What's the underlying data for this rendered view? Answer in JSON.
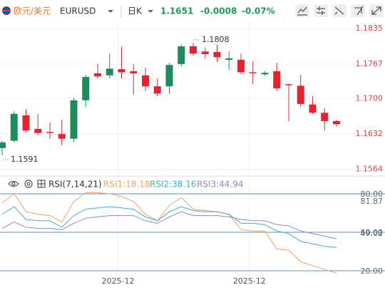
{
  "header": {
    "pair_name": "欧元/美元",
    "symbol": "EURUSD",
    "period": "日K",
    "price": "1.1651",
    "change": "-0.0008",
    "change_pct": "-0.07%",
    "change_color": "#1a9a5a"
  },
  "chart_data": [
    {
      "type": "candlestick",
      "categories": [
        null,
        null,
        null,
        null,
        null,
        null,
        null,
        null,
        null,
        null,
        "2025-12",
        null,
        null,
        null,
        null,
        null,
        null,
        null,
        null,
        null,
        null,
        "2025-12",
        null,
        null,
        null,
        null,
        null,
        null,
        null
      ],
      "open": [
        1.1605,
        1.1619,
        1.1668,
        1.1642,
        1.1636,
        1.1632,
        1.1623,
        1.1697,
        1.1749,
        1.1745,
        1.1757,
        1.1753,
        1.1745,
        1.1724,
        1.1724,
        1.1767,
        1.1801,
        1.1791,
        1.179,
        1.1775,
        1.1775,
        1.1751,
        1.1747,
        1.1753,
        1.1728,
        1.1725,
        1.1689,
        1.1673,
        1.1657
      ],
      "high": [
        1.1619,
        1.1676,
        1.168,
        1.1671,
        1.1654,
        1.166,
        1.1701,
        1.1746,
        1.1767,
        1.1787,
        1.18,
        1.1767,
        1.176,
        1.1739,
        1.1769,
        1.1805,
        1.1808,
        1.1799,
        1.1804,
        1.1791,
        1.1787,
        1.1773,
        1.1753,
        1.1769,
        1.1729,
        1.1746,
        1.1705,
        1.1682,
        1.166
      ],
      "low": [
        1.1591,
        1.1616,
        1.1635,
        1.163,
        1.1623,
        1.161,
        1.1616,
        1.1684,
        1.1739,
        1.1739,
        1.1739,
        1.1708,
        1.1715,
        1.1705,
        1.1709,
        1.1762,
        1.1783,
        1.1778,
        1.1771,
        1.1756,
        1.1747,
        1.1728,
        1.1745,
        1.1715,
        1.1657,
        1.1684,
        1.1671,
        1.1639,
        1.1646
      ],
      "close": [
        1.1616,
        1.1671,
        1.1639,
        1.1634,
        1.1634,
        1.1623,
        1.1697,
        1.1742,
        1.1743,
        1.1758,
        1.1751,
        1.1749,
        1.1724,
        1.171,
        1.1765,
        1.1801,
        1.1787,
        1.1786,
        1.178,
        1.1778,
        1.1751,
        1.1749,
        1.175,
        1.172,
        1.1726,
        1.169,
        1.1673,
        1.1657,
        1.1651
      ],
      "up_color": "#1e8c5a",
      "down_color": "#e5232e",
      "axis_label_color": "#e0404a",
      "ylim": [
        1.1554,
        1.186
      ],
      "yticks": [
        1.1835,
        1.1767,
        {
          "value": 1.17,
          "label": "1.1700"
        },
        1.1632,
        1.1564
      ],
      "max_label": {
        "value": 1.1808,
        "label": "1.1808"
      },
      "min_label": {
        "value": 1.1591,
        "label": "1.1591"
      },
      "grid": true
    },
    {
      "type": "line",
      "title": "RSI(7,14,21)",
      "series": [
        {
          "name": "RSI1:18.18",
          "color": "#f2a15a",
          "values": [
            72.8,
            80,
            66,
            64,
            63,
            58,
            74,
            81,
            81,
            80,
            78,
            74,
            64,
            59,
            71,
            77,
            68,
            67,
            66,
            64,
            52,
            51,
            51,
            37,
            36,
            27,
            24,
            21,
            18.18
          ]
        },
        {
          "name": "RSI2:38.16",
          "color": "#33b3c9",
          "values": [
            64,
            70,
            60,
            59,
            59,
            54,
            63,
            68,
            69,
            70,
            69,
            68,
            62,
            59,
            66,
            70,
            67,
            66,
            66,
            64,
            57,
            57,
            56,
            51,
            49,
            43,
            41,
            39,
            38.16
          ]
        },
        {
          "name": "RSI3:44.94",
          "color": "#9a80d0",
          "values": [
            53,
            58,
            54,
            53,
            53,
            52,
            57,
            61,
            62,
            63,
            63,
            63,
            59,
            57,
            62,
            66,
            63,
            63,
            63,
            62,
            60,
            59,
            59,
            56,
            55,
            51,
            49,
            47,
            44.94
          ]
        }
      ],
      "ylim": [
        15,
        85
      ],
      "yticks": [
        {
          "value": 80,
          "label": "80.00"
        },
        {
          "value": 50,
          "label": "50.00"
        },
        {
          "value": 20,
          "label": "20.00"
        }
      ],
      "level_color": "#4a9ad6",
      "markers": [
        {
          "value": 81.87,
          "label": "81.87"
        },
        {
          "value": 49.02,
          "label": "49.02"
        }
      ]
    }
  ]
}
